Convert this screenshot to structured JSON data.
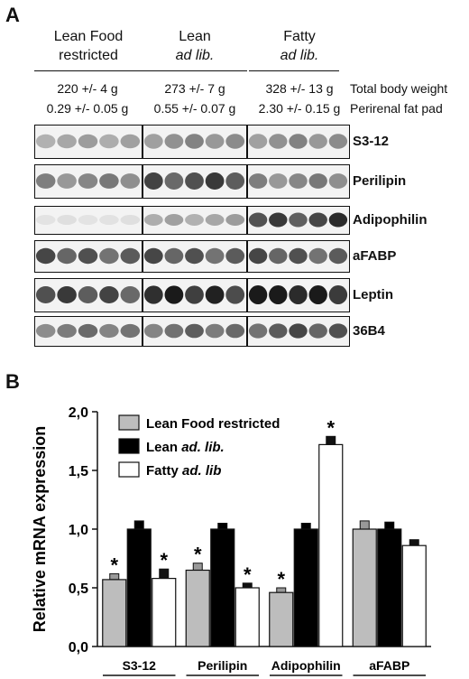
{
  "figure": {
    "panel_a_label": "A",
    "panel_b_label": "B",
    "groups": [
      {
        "line1": "Lean Food",
        "line2": "restricted",
        "line2_italic": false,
        "body_weight": "220 +/- 4 g",
        "fat_pad": "0.29 +/- 0.05 g"
      },
      {
        "line1": "Lean",
        "line2": "ad lib.",
        "line2_italic": true,
        "body_weight": "273 +/- 7 g",
        "fat_pad": "0.55 +/- 0.07 g"
      },
      {
        "line1": "Fatty",
        "line2": "ad lib.",
        "line2_italic": true,
        "body_weight": "328 +/- 13 g",
        "fat_pad": "2.30 +/- 0.15 g"
      }
    ],
    "row_labels": {
      "body_weight": "Total body weight",
      "fat_pad": "Perirenal fat pad"
    },
    "blot_rows": [
      {
        "gene": "S3-12",
        "intensity": [
          0.35,
          0.45,
          0.45
        ]
      },
      {
        "gene": "Perilipin",
        "intensity": [
          0.5,
          0.75,
          0.5
        ]
      },
      {
        "gene": "Adipophilin",
        "intensity": [
          0.08,
          0.35,
          0.8
        ]
      },
      {
        "gene": "aFABP",
        "intensity": [
          0.7,
          0.7,
          0.7
        ]
      },
      {
        "gene": "Leptin",
        "intensity": [
          0.75,
          0.9,
          1.0
        ]
      },
      {
        "gene": "36B4",
        "intensity": [
          0.55,
          0.6,
          0.7
        ]
      }
    ]
  },
  "chart_data": {
    "type": "bar",
    "ylabel": "Relative mRNA expression",
    "ylim": [
      0,
      2.0
    ],
    "yticks": [
      "0,0",
      "0,5",
      "1,0",
      "1,5",
      "2,0"
    ],
    "categories": [
      "S3-12",
      "Perilipin",
      "Adipophilin",
      "aFABP"
    ],
    "legend_placement": "top-left",
    "series": [
      {
        "name": "Lean Food restricted",
        "name_main": "Lean Food restricted",
        "name_italic": "",
        "color": "#bdbdbd",
        "values": [
          0.57,
          0.65,
          0.46,
          1.0
        ],
        "errors": [
          0.05,
          0.06,
          0.04,
          0.07
        ],
        "sig": [
          true,
          true,
          true,
          false
        ]
      },
      {
        "name": "Lean ad. lib.",
        "name_main": "Lean ",
        "name_italic": "ad. lib.",
        "color": "#000000",
        "values": [
          1.0,
          1.0,
          1.0,
          1.0
        ],
        "errors": [
          0.07,
          0.05,
          0.05,
          0.06
        ],
        "sig": [
          false,
          false,
          false,
          false
        ]
      },
      {
        "name": "Fatty ad. lib",
        "name_main": "Fatty ",
        "name_italic": "ad. lib",
        "color": "#ffffff",
        "values": [
          0.58,
          0.5,
          1.72,
          0.86
        ],
        "errors": [
          0.08,
          0.04,
          0.07,
          0.05
        ],
        "sig": [
          true,
          true,
          true,
          false
        ]
      }
    ],
    "sig_marker": "*"
  }
}
